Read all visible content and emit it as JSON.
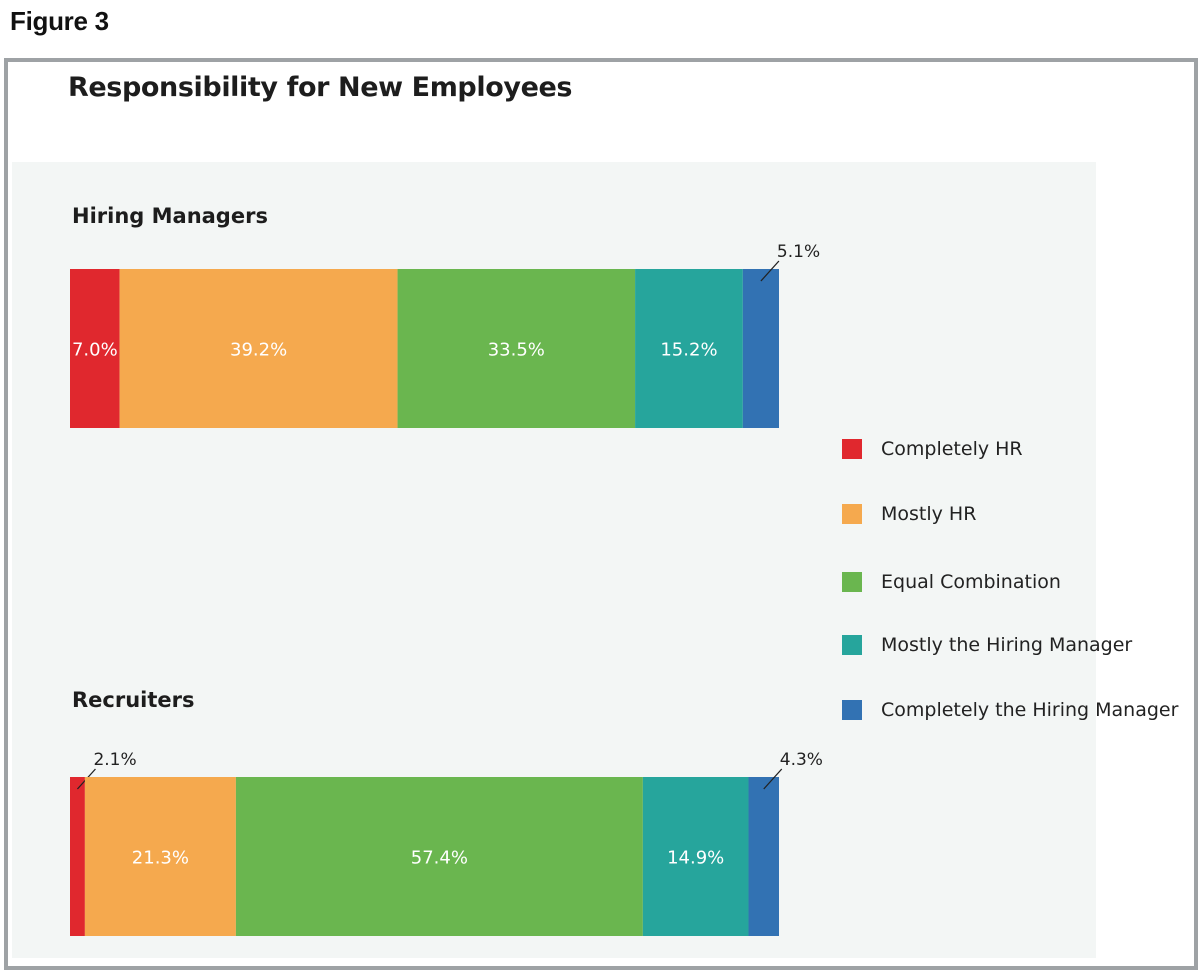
{
  "figure_label": "Figure 3",
  "chart_data": {
    "type": "bar",
    "orientation": "horizontal",
    "stacked": true,
    "title": "Responsibility for New Employees",
    "unit": "%",
    "categories": [
      "Hiring Managers",
      "Recruiters"
    ],
    "series": [
      {
        "name": "Completely HR",
        "color": "#e0282e",
        "values": [
          7.0,
          2.1
        ],
        "labels": [
          "7.0%",
          "2.1%"
        ]
      },
      {
        "name": "Mostly HR",
        "color": "#f5a94e",
        "values": [
          39.2,
          21.3
        ],
        "labels": [
          "39.2%",
          "21.3%"
        ]
      },
      {
        "name": "Equal Combination",
        "color": "#6ab64f",
        "values": [
          33.5,
          57.4
        ],
        "labels": [
          "33.5%",
          "57.4%"
        ]
      },
      {
        "name": "Mostly the Hiring Manager",
        "color": "#26a59c",
        "values": [
          15.2,
          14.9
        ],
        "labels": [
          "15.2%",
          "14.9%"
        ]
      },
      {
        "name": "Completely the Hiring Manager",
        "color": "#3272b3",
        "values": [
          5.1,
          4.3
        ],
        "labels": [
          "5.1%",
          "4.3%"
        ]
      }
    ],
    "legend": "right",
    "grid": false
  }
}
